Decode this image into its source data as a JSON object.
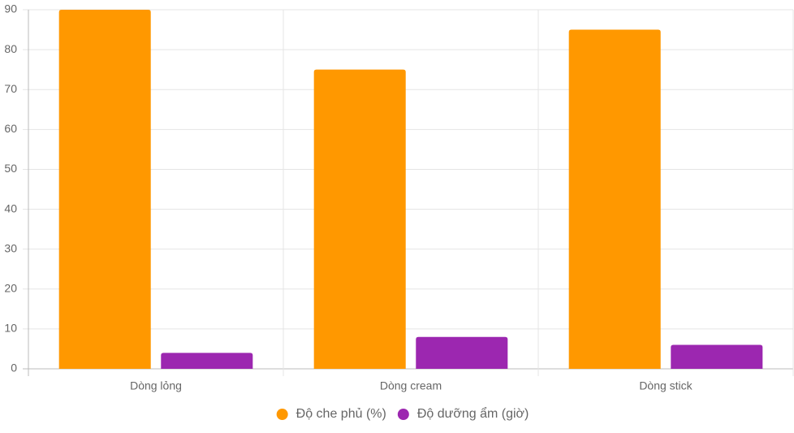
{
  "chart_data": {
    "type": "bar",
    "categories": [
      "Dòng lỏng",
      "Dòng cream",
      "Dòng stick"
    ],
    "series": [
      {
        "name": "Độ che phủ (%)",
        "color": "#ff9800",
        "values": [
          90,
          75,
          85
        ]
      },
      {
        "name": "Độ dưỡng ẩm (giờ)",
        "color": "#9c27b0",
        "values": [
          4,
          8,
          6
        ]
      }
    ],
    "ylim": [
      0,
      90
    ],
    "yticks": [
      0,
      10,
      20,
      30,
      40,
      50,
      60,
      70,
      80,
      90
    ],
    "grid": true,
    "legend": "bottom"
  }
}
